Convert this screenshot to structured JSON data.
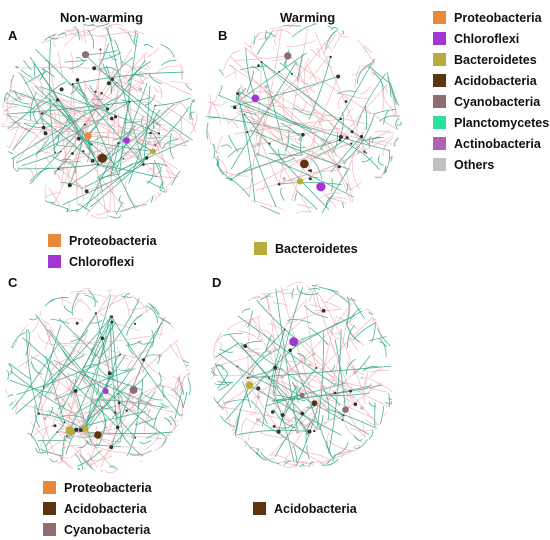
{
  "column_titles": [
    "Non-warming",
    "Warming"
  ],
  "panels": [
    {
      "label": "A",
      "highlight": [
        "Proteobacteria",
        "Chloroflexi"
      ]
    },
    {
      "label": "B",
      "highlight": [
        "Bacteroidetes"
      ]
    },
    {
      "label": "C",
      "highlight": [
        "Proteobacteria",
        "Acidobacteria",
        "Cyanobacteria"
      ]
    },
    {
      "label": "D",
      "highlight": [
        "Acidobacteria"
      ]
    }
  ],
  "legend": [
    {
      "name": "Proteobacteria",
      "color": "#e8883a"
    },
    {
      "name": "Chloroflexi",
      "color": "#a334d6"
    },
    {
      "name": "Bacteroidetes",
      "color": "#b5ad3c"
    },
    {
      "name": "Acidobacteria",
      "color": "#5c3510"
    },
    {
      "name": "Cyanobacteria",
      "color": "#8e6e6e"
    },
    {
      "name": "Planctomycetes",
      "color": "#2ee0a0"
    },
    {
      "name": "Actinobacteria",
      "color": "#b062b5"
    },
    {
      "name": "Others",
      "color": "#c0c0c0"
    }
  ],
  "edge_colors": {
    "positive": "#e8a0a8",
    "negative": "#2ea585"
  }
}
